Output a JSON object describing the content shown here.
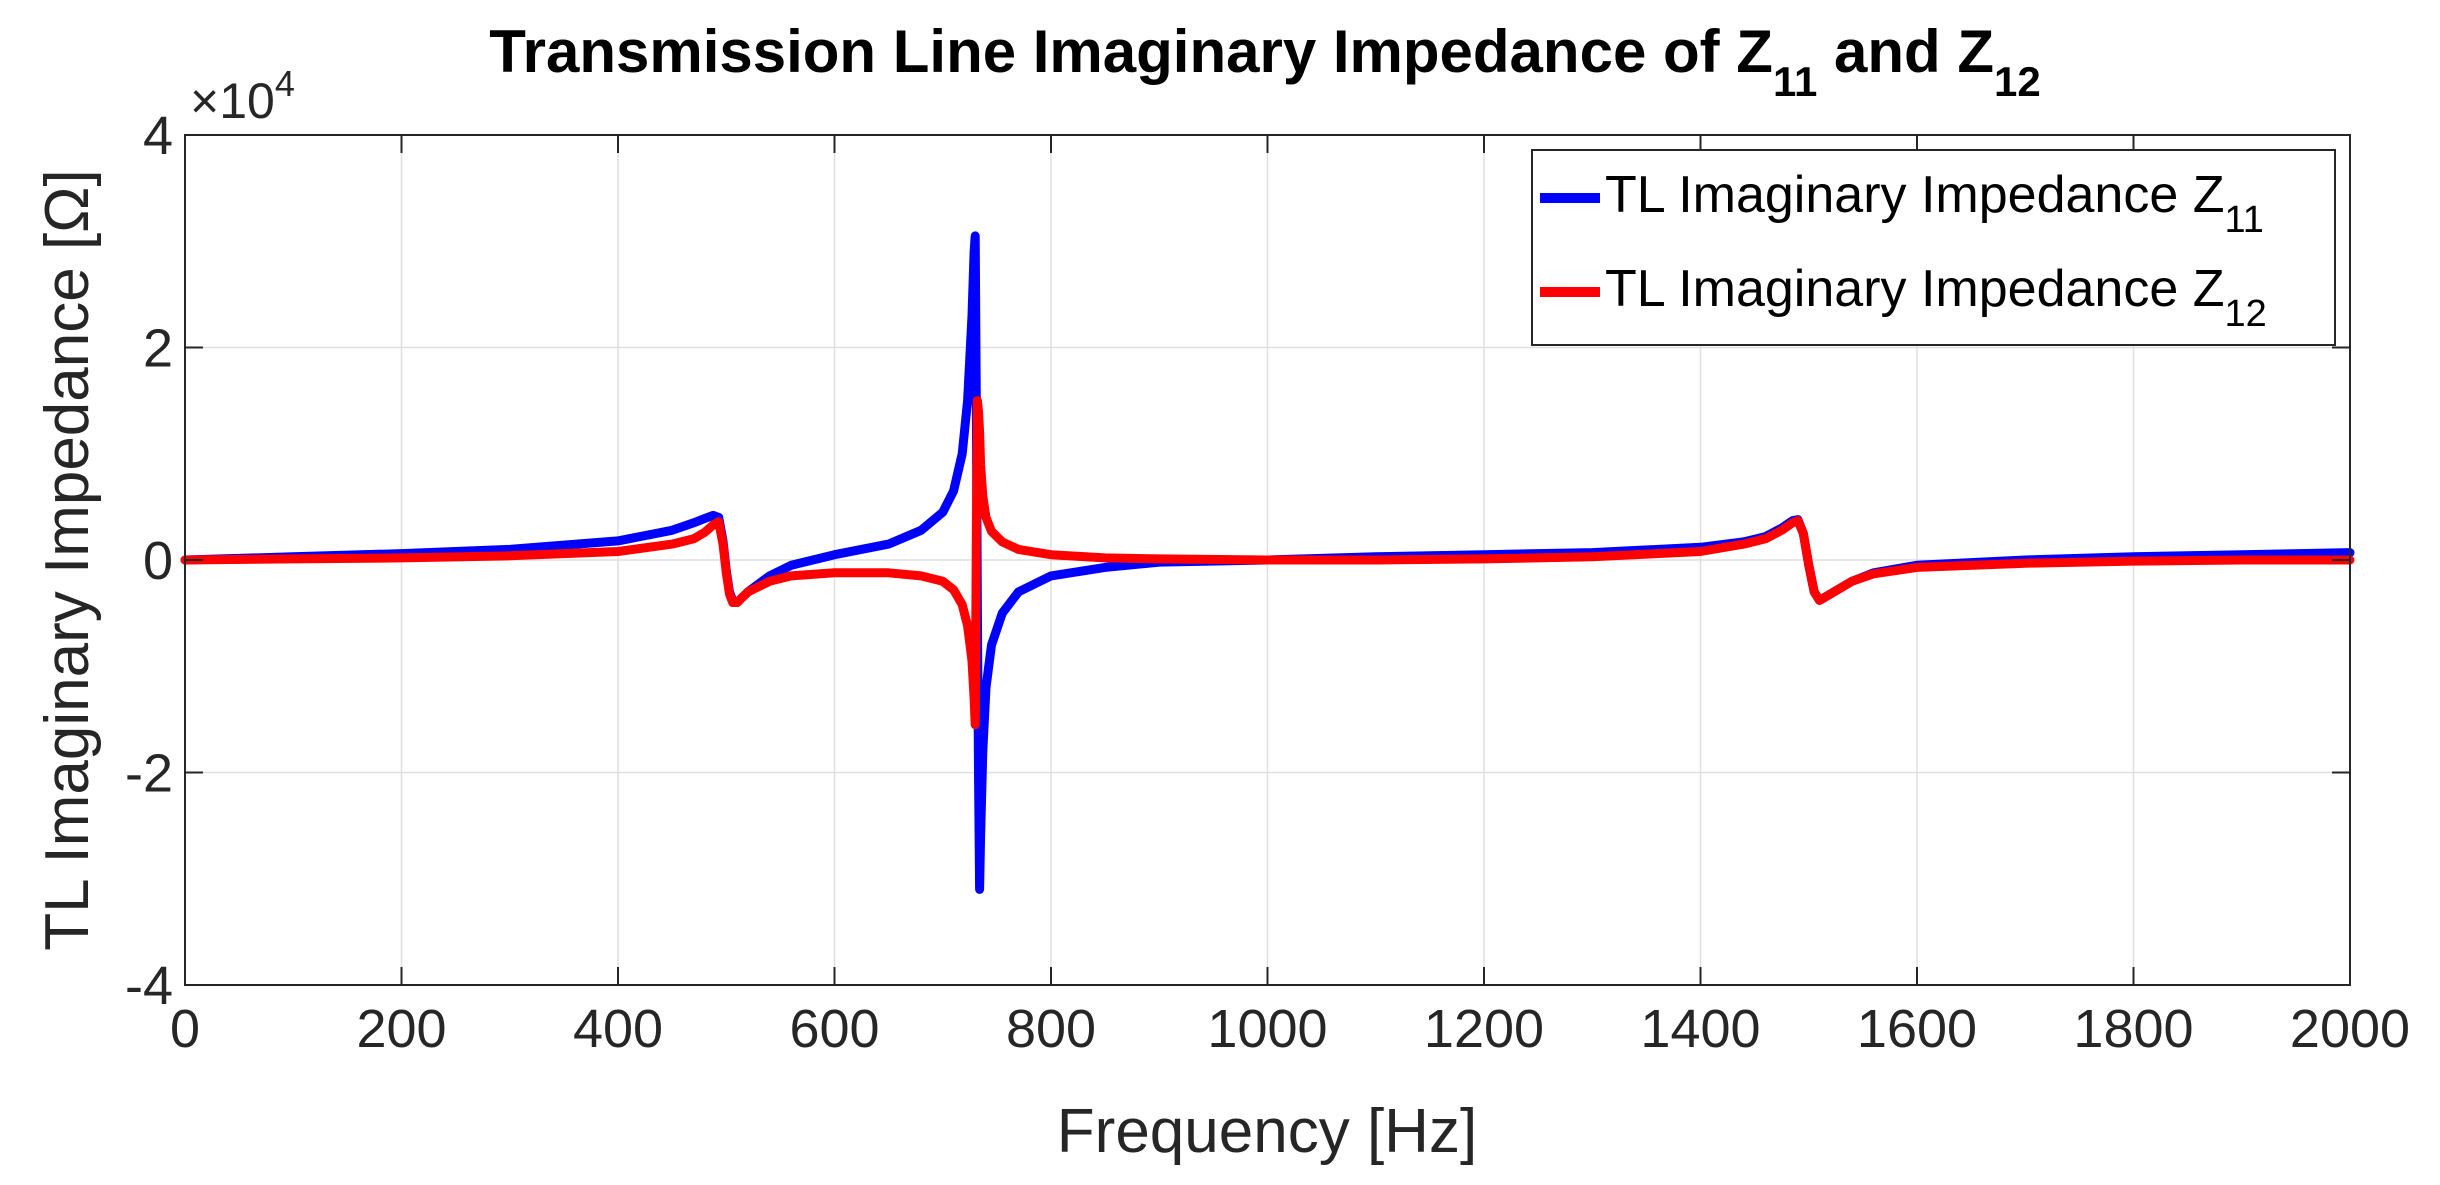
{
  "chart_data": {
    "type": "line",
    "title": {
      "prefix": "Transmission Line Imaginary Impedance of Z",
      "sub1": "11",
      "middle": " and Z",
      "sub2": "12"
    },
    "xlabel": "Frequency [Hz]",
    "ylabel": "TL Imaginary Impedance [Ω]",
    "y_multiplier": {
      "base": "×10",
      "exponent": "4"
    },
    "xlim": [
      0,
      2000
    ],
    "ylim": [
      -4,
      4
    ],
    "x_ticks": [
      0,
      200,
      400,
      600,
      800,
      1000,
      1200,
      1400,
      1600,
      1800,
      2000
    ],
    "y_ticks": [
      -4,
      -2,
      0,
      2,
      4
    ],
    "x_tick_labels": [
      "0",
      "200",
      "400",
      "600",
      "800",
      "1000",
      "1200",
      "1400",
      "1600",
      "1800",
      "2000"
    ],
    "y_tick_labels": [
      "-4",
      "-2",
      "0",
      "2",
      "4"
    ],
    "grid": true,
    "legend_position": "top-right",
    "series": [
      {
        "name": "TL Imaginary Impedance Z",
        "subscript": "11",
        "color": "#0000ff",
        "x": [
          0,
          100,
          200,
          300,
          400,
          450,
          470,
          480,
          488,
          493,
          497,
          500,
          503,
          506,
          510,
          520,
          540,
          560,
          600,
          650,
          680,
          700,
          710,
          718,
          723,
          727,
          729,
          730,
          731,
          732,
          733,
          734,
          735,
          737,
          740,
          745,
          755,
          770,
          800,
          850,
          900,
          1000,
          1100,
          1200,
          1300,
          1400,
          1440,
          1460,
          1475,
          1485,
          1490,
          1495,
          1500,
          1505,
          1510,
          1520,
          1540,
          1560,
          1600,
          1700,
          1800,
          1900,
          2000
        ],
        "values": [
          0,
          0.03,
          0.06,
          0.1,
          0.18,
          0.28,
          0.35,
          0.39,
          0.42,
          0.4,
          0.18,
          -0.1,
          -0.3,
          -0.38,
          -0.4,
          -0.3,
          -0.15,
          -0.05,
          0.05,
          0.15,
          0.28,
          0.45,
          0.65,
          1.0,
          1.5,
          2.3,
          2.9,
          3.05,
          1.5,
          -0.5,
          -2.0,
          -3.1,
          -2.6,
          -1.8,
          -1.2,
          -0.8,
          -0.5,
          -0.3,
          -0.15,
          -0.07,
          -0.02,
          0.0,
          0.03,
          0.05,
          0.07,
          0.12,
          0.17,
          0.22,
          0.3,
          0.37,
          0.38,
          0.25,
          -0.05,
          -0.3,
          -0.38,
          -0.32,
          -0.2,
          -0.12,
          -0.05,
          0.0,
          0.03,
          0.05,
          0.07
        ]
      },
      {
        "name": "TL Imaginary Impedance Z",
        "subscript": "12",
        "color": "#ff0000",
        "x": [
          0,
          100,
          200,
          300,
          400,
          450,
          470,
          480,
          488,
          493,
          497,
          500,
          503,
          506,
          510,
          520,
          540,
          560,
          600,
          650,
          680,
          700,
          710,
          718,
          723,
          727,
          729,
          730,
          731,
          732,
          733,
          734,
          735,
          737,
          740,
          745,
          755,
          770,
          800,
          850,
          900,
          1000,
          1100,
          1200,
          1300,
          1400,
          1440,
          1460,
          1475,
          1485,
          1490,
          1495,
          1500,
          1505,
          1510,
          1520,
          1540,
          1560,
          1600,
          1700,
          1800,
          1900,
          2000
        ],
        "values": [
          0,
          0.01,
          0.02,
          0.04,
          0.08,
          0.15,
          0.2,
          0.26,
          0.33,
          0.36,
          0.15,
          -0.12,
          -0.32,
          -0.4,
          -0.4,
          -0.3,
          -0.2,
          -0.15,
          -0.12,
          -0.12,
          -0.15,
          -0.2,
          -0.28,
          -0.42,
          -0.62,
          -0.95,
          -1.3,
          -1.55,
          0.2,
          1.5,
          1.4,
          1.2,
          0.9,
          0.6,
          0.4,
          0.27,
          0.17,
          0.1,
          0.05,
          0.02,
          0.01,
          0.0,
          0.0,
          0.01,
          0.03,
          0.08,
          0.15,
          0.2,
          0.28,
          0.35,
          0.37,
          0.25,
          -0.05,
          -0.3,
          -0.38,
          -0.32,
          -0.2,
          -0.13,
          -0.07,
          -0.03,
          -0.01,
          0.0,
          0.0
        ]
      }
    ]
  }
}
